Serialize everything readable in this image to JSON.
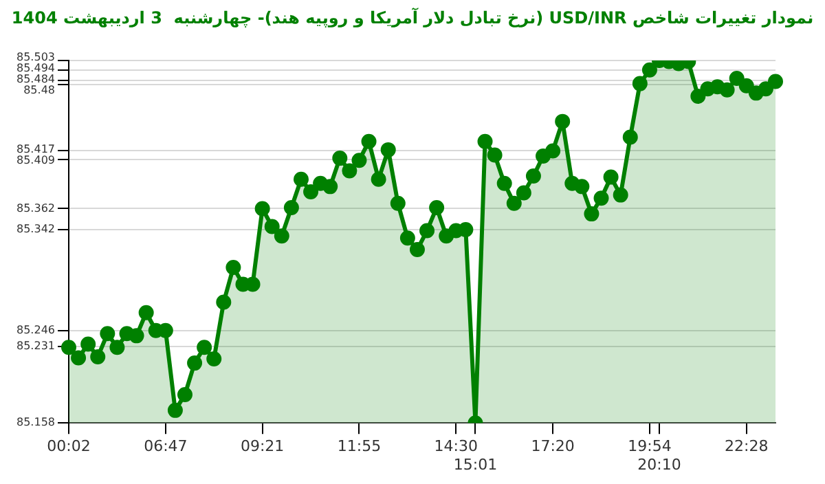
{
  "chart_data": {
    "type": "area",
    "title": "نمودار تغییرات شاخص USD/INR (نرخ تبادل دلار آمریکا و روپیه هند)- چهارشنبه  3 اردیبهشت 1404",
    "categories": [
      "00:02",
      null,
      null,
      null,
      null,
      null,
      null,
      null,
      null,
      null,
      "06:47",
      null,
      null,
      null,
      null,
      null,
      null,
      null,
      null,
      null,
      "09:21",
      null,
      null,
      null,
      null,
      null,
      null,
      null,
      null,
      null,
      "11:55",
      null,
      null,
      null,
      null,
      null,
      null,
      null,
      null,
      null,
      "14:30",
      null,
      "15:01",
      null,
      null,
      null,
      null,
      null,
      null,
      null,
      "17:20",
      null,
      null,
      null,
      null,
      null,
      null,
      null,
      null,
      null,
      "19:54",
      "20:10",
      null,
      null,
      null,
      null,
      null,
      null,
      null,
      null,
      "22:28",
      null,
      null,
      null
    ],
    "series": [
      {
        "color": "#008000",
        "values": [
          85.23,
          85.22,
          85.233,
          85.221,
          85.243,
          85.23,
          85.243,
          85.241,
          85.263,
          85.246,
          85.246,
          85.17,
          85.185,
          85.215,
          85.23,
          85.219,
          85.273,
          85.306,
          85.29,
          85.29,
          85.362,
          85.345,
          85.336,
          85.363,
          85.39,
          85.378,
          85.386,
          85.383,
          85.41,
          85.398,
          85.408,
          85.426,
          85.39,
          85.418,
          85.367,
          85.334,
          85.323,
          85.341,
          85.363,
          85.336,
          85.341,
          85.342,
          85.158,
          85.426,
          85.413,
          85.386,
          85.367,
          85.377,
          85.393,
          85.412,
          85.417,
          85.445,
          85.386,
          85.383,
          85.357,
          85.372,
          85.392,
          85.375,
          85.43,
          85.481,
          85.494,
          85.503,
          85.502,
          85.5,
          85.502,
          85.469,
          85.476,
          85.478,
          85.475,
          85.486,
          85.479,
          85.472,
          85.476,
          85.483
        ]
      }
    ],
    "ylim": [
      85.158,
      85.503
    ],
    "yticks": [
      85.158,
      85.231,
      85.246,
      85.342,
      85.362,
      85.409,
      85.417,
      85.48,
      85.484,
      85.494,
      85.503
    ],
    "grid": "y",
    "marker": "circle"
  }
}
